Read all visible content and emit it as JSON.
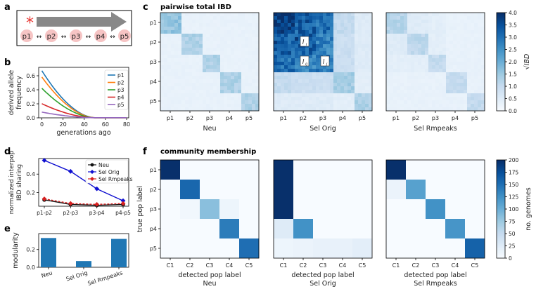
{
  "panel_letters": {
    "a": "a",
    "b": "b",
    "c": "c",
    "d": "d",
    "e": "e",
    "f": "f"
  },
  "panel_a": {
    "populations": [
      "p1",
      "p2",
      "p3",
      "p4",
      "p5"
    ],
    "marker": "*",
    "colors": {
      "arrow": "#888888",
      "marker": "#e8332f",
      "pop_blob": "#f6c4c4"
    }
  },
  "section_titles": {
    "c": "pairwise total IBD",
    "f": "community membership"
  },
  "colors": {
    "accent": "#1f5fa0",
    "blue_dark": "#08306b",
    "blue_light": "#f7fbff"
  },
  "chart_data": [
    {
      "id": "b",
      "type": "line",
      "ylabel": "derived allele\nfrequency",
      "xlabel": "generations ago",
      "xlim": [
        -3,
        82
      ],
      "ylim": [
        0,
        0.72
      ],
      "xticks": [
        0,
        20,
        40,
        60,
        80
      ],
      "yticks": [
        0.0,
        0.2,
        0.4,
        0.6
      ],
      "ytick_labels": [
        "0.0",
        "0.2",
        "0.4",
        "0.6"
      ],
      "legend": "top-right",
      "series": [
        {
          "name": "p1",
          "color": "#1f77b4",
          "y0": 0.67
        },
        {
          "name": "p2",
          "color": "#ff7f0e",
          "y0": 0.58
        },
        {
          "name": "p3",
          "color": "#2ca02c",
          "y0": 0.42
        },
        {
          "name": "p4",
          "color": "#d62728",
          "y0": 0.2
        },
        {
          "name": "p5",
          "color": "#9467bd",
          "y0": 0.08
        }
      ],
      "decay_end": 50
    },
    {
      "id": "c",
      "type": "heatmap",
      "title": "pairwise total IBD",
      "panels": [
        "Neu",
        "Sel Orig",
        "Sel Rmpeaks"
      ],
      "tick_labels": [
        "p1",
        "p2",
        "p3",
        "p4",
        "p5"
      ],
      "colorbar": {
        "label": "√IBD",
        "range": [
          0,
          4.0
        ],
        "ticks": [
          "0.0",
          "0.5",
          "1.0",
          "1.5",
          "2.0",
          "2.5",
          "3.0",
          "3.5",
          "4.0"
        ]
      },
      "block_values": {
        "Neu": [
          [
            1.6,
            0.3,
            0.3,
            0.3,
            0.3
          ],
          [
            0.3,
            1.3,
            0.3,
            0.3,
            0.3
          ],
          [
            0.3,
            0.3,
            1.3,
            0.3,
            0.3
          ],
          [
            0.3,
            0.3,
            0.3,
            1.3,
            0.3
          ],
          [
            0.3,
            0.3,
            0.3,
            0.3,
            1.3
          ]
        ],
        "Sel Orig": [
          [
            3.7,
            3.2,
            3.0,
            1.0,
            0.5
          ],
          [
            3.2,
            3.4,
            2.8,
            0.9,
            0.5
          ],
          [
            3.0,
            2.8,
            3.0,
            0.9,
            0.5
          ],
          [
            1.0,
            0.9,
            0.9,
            1.4,
            0.4
          ],
          [
            0.5,
            0.5,
            0.5,
            0.4,
            1.3
          ]
        ],
        "Sel Rmpeaks": [
          [
            1.2,
            0.5,
            0.4,
            0.3,
            0.3
          ],
          [
            0.5,
            1.1,
            0.4,
            0.3,
            0.3
          ],
          [
            0.4,
            0.4,
            1.0,
            0.3,
            0.3
          ],
          [
            0.3,
            0.3,
            0.3,
            1.0,
            0.3
          ],
          [
            0.3,
            0.3,
            0.3,
            0.3,
            1.0
          ]
        ]
      },
      "annotations": {
        "a": "l",
        "a_sub": "i",
        "b": "l",
        "b_sub": "ij",
        "c": "l",
        "c_sub": "j"
      }
    },
    {
      "id": "d",
      "type": "line",
      "ylabel": "normalized interpop\nIBD sharing",
      "categories": [
        "p1-p2",
        "p2-p3",
        "p3-p4",
        "p4-p5"
      ],
      "ylim": [
        0.05,
        0.57
      ],
      "yticks": [
        0.2,
        0.4
      ],
      "ytick_labels": [
        "0.2",
        "0.4"
      ],
      "legend": "top-right",
      "series": [
        {
          "name": "Neu",
          "color": "#111111",
          "marker": "circle",
          "values": [
            0.12,
            0.07,
            0.06,
            0.07
          ]
        },
        {
          "name": "Sel Orig",
          "color": "#1010d0",
          "marker": "diamond",
          "values": [
            0.55,
            0.43,
            0.24,
            0.11
          ]
        },
        {
          "name": "Sel Rmpeaks",
          "color": "#d62020",
          "marker": "diamond",
          "dashed": true,
          "values": [
            0.13,
            0.08,
            0.07,
            0.08
          ]
        }
      ]
    },
    {
      "id": "e",
      "type": "bar",
      "ylabel": "modularity",
      "categories": [
        "Neu",
        "Sel Orig",
        "Sel Rmpeaks"
      ],
      "values": [
        0.33,
        0.07,
        0.32
      ],
      "ylim": [
        0,
        0.38
      ],
      "yticks": [
        0.0,
        0.2
      ],
      "ytick_labels": [
        "0.0",
        "0.2"
      ],
      "color": "#1f77b4"
    },
    {
      "id": "f",
      "type": "heatmap",
      "title": "community membership",
      "ylabel": "true pop label",
      "xlabel": "detected pop label",
      "panels": [
        "Neu",
        "Sel Orig",
        "Sel Rmpeaks"
      ],
      "row_labels": [
        "p1",
        "p2",
        "p3",
        "p4",
        "p5"
      ],
      "col_labels": [
        "C1",
        "C2",
        "C3",
        "C4",
        "C5"
      ],
      "colorbar": {
        "label": "no. genomes",
        "range": [
          0,
          200
        ],
        "ticks": [
          "0",
          "25",
          "50",
          "75",
          "100",
          "125",
          "150",
          "175",
          "200"
        ]
      },
      "matrices": {
        "Neu": [
          [
            200,
            0,
            0,
            0,
            0
          ],
          [
            0,
            158,
            0,
            0,
            0
          ],
          [
            0,
            6,
            85,
            10,
            0
          ],
          [
            0,
            0,
            0,
            142,
            0
          ],
          [
            0,
            0,
            0,
            0,
            152
          ]
        ],
        "Sel Orig": [
          [
            200,
            0,
            0,
            0,
            0
          ],
          [
            200,
            0,
            0,
            0,
            0
          ],
          [
            200,
            0,
            0,
            0,
            0
          ],
          [
            25,
            125,
            0,
            0,
            0
          ],
          [
            10,
            12,
            15,
            15,
            20
          ]
        ],
        "Sel Rmpeaks": [
          [
            200,
            0,
            0,
            0,
            0
          ],
          [
            12,
            112,
            0,
            0,
            0
          ],
          [
            0,
            0,
            125,
            0,
            0
          ],
          [
            0,
            0,
            0,
            122,
            0
          ],
          [
            0,
            0,
            0,
            0,
            162
          ]
        ]
      }
    }
  ]
}
